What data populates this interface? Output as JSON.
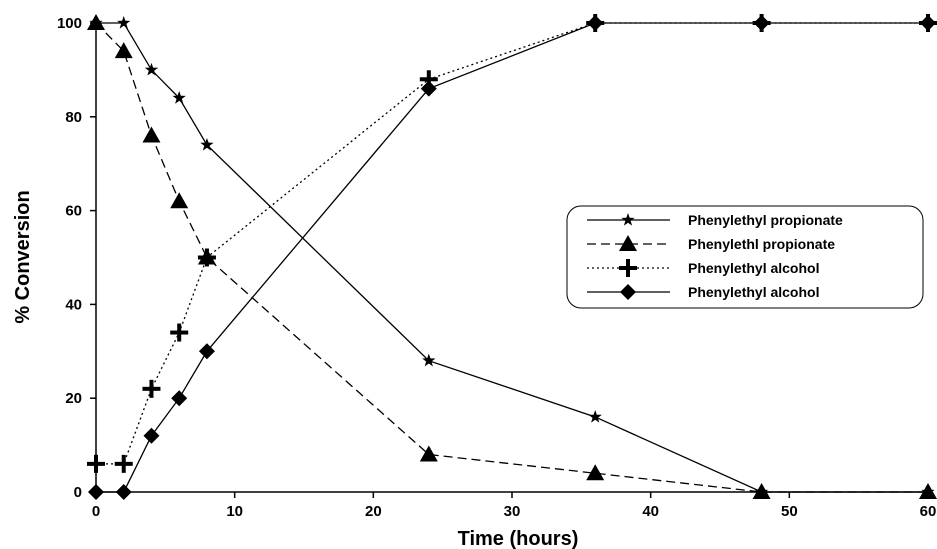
{
  "chart_data": {
    "type": "line",
    "title": "",
    "xlabel": "Time (hours)",
    "ylabel": "% Conversion",
    "xlim": [
      0,
      60
    ],
    "ylim": [
      0,
      100
    ],
    "xticks": [
      0,
      10,
      20,
      30,
      40,
      50,
      60
    ],
    "yticks": [
      0,
      20,
      40,
      60,
      80,
      100
    ],
    "grid": false,
    "legend_position": "right",
    "series": [
      {
        "name": "Phenylethyl propionate",
        "marker": "star",
        "line_style": "solid",
        "color": "#000000",
        "x": [
          0,
          2,
          4,
          6,
          8,
          24,
          36,
          48,
          60
        ],
        "y": [
          100,
          100,
          90,
          84,
          74,
          28,
          16,
          0,
          0
        ]
      },
      {
        "name": "Phenylethl propionate",
        "marker": "triangle",
        "line_style": "dashed",
        "color": "#000000",
        "x": [
          0,
          2,
          4,
          6,
          8,
          24,
          36,
          48,
          60
        ],
        "y": [
          100,
          94,
          76,
          62,
          50,
          8,
          4,
          0,
          0
        ]
      },
      {
        "name": "Phenylethyl alcohol",
        "marker": "plus",
        "line_style": "dotted",
        "color": "#000000",
        "x": [
          0,
          2,
          4,
          6,
          8,
          24,
          36,
          48,
          60
        ],
        "y": [
          6,
          6,
          22,
          34,
          50,
          88,
          100,
          100,
          100
        ]
      },
      {
        "name": "Phenylethyl alcohol",
        "marker": "diamond",
        "line_style": "solid",
        "color": "#000000",
        "x": [
          0,
          2,
          4,
          6,
          8,
          24,
          36,
          48,
          60
        ],
        "y": [
          0,
          0,
          12,
          20,
          30,
          86,
          100,
          100,
          100
        ]
      }
    ]
  }
}
